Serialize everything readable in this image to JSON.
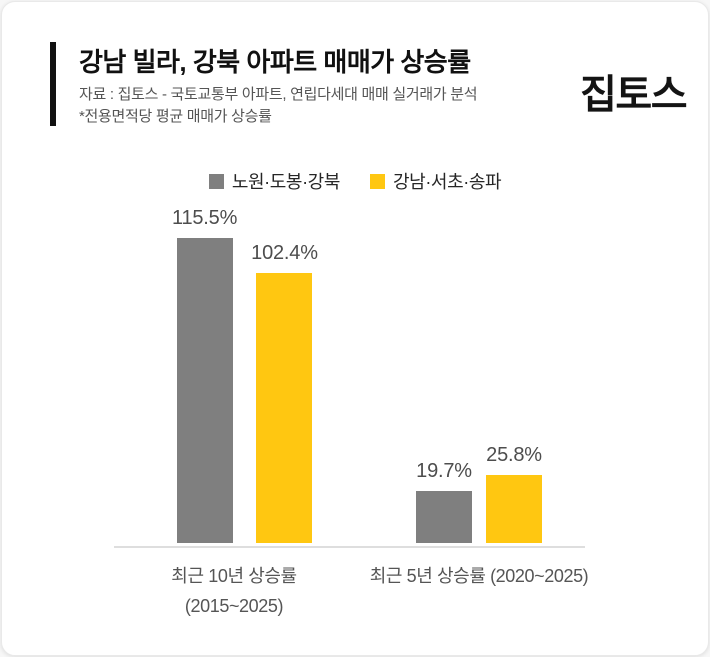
{
  "header": {
    "title": "강남 빌라, 강북 아파트 매매가 상승률",
    "source_note": "자료 : 집토스 - 국토교통부 아파트, 연립다세대 매매 실거래가 분석",
    "footnote": "*전용면적당 평균 매매가 상승률",
    "logo": "집토스"
  },
  "colors": {
    "series_gray": "#7f7f7f",
    "series_yellow": "#ffc711",
    "accent_bar": "#111111",
    "axis_line": "#dedede",
    "value_label": "#4d4d4d"
  },
  "chart_data": {
    "type": "bar",
    "categories": [
      "최근 10년 상승률\n(2015~2025)",
      "최근 5년 상승률 (2020~2025)"
    ],
    "series": [
      {
        "name": "노원·도봉·강북",
        "color": "#7f7f7f",
        "values": [
          115.5,
          19.7
        ]
      },
      {
        "name": "강남·서초·송파",
        "color": "#ffc711",
        "values": [
          102.4,
          25.8
        ]
      }
    ],
    "value_labels": [
      [
        "115.5%",
        "19.7%"
      ],
      [
        "102.4%",
        "25.8%"
      ]
    ],
    "unit": "%",
    "ylim": [
      0,
      130
    ],
    "grid": false,
    "legend_position": "top",
    "value_label_position": "above-bar"
  }
}
